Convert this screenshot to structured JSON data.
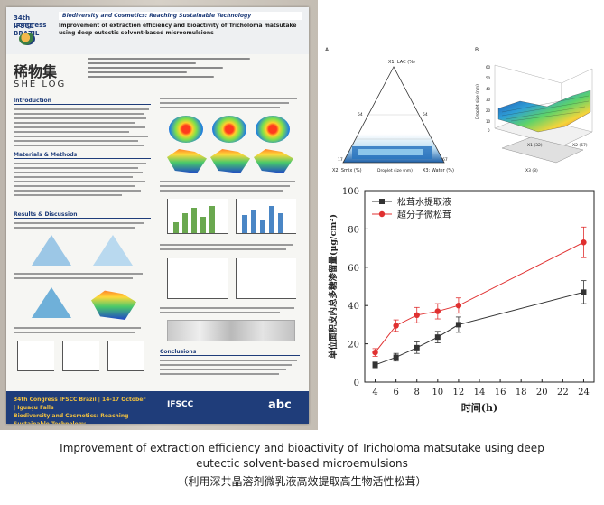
{
  "poster": {
    "conference_logo_line1": "34th Congress",
    "conference_logo_line2": "IFSCC BRAZIL",
    "banner": "Biodiversity and Cosmetics: Reaching Sustainable Technology",
    "title": "Improvement of extraction efficiency and bioactivity of Tricholoma matsutake using deep eutectic solvent-based microemulsions",
    "brand_cn": "稀物集",
    "brand_en": "SHE LOG",
    "sections": [
      "Introduction",
      "Materials & Methods",
      "Results & Discussion",
      "Conclusions"
    ],
    "footer_line1": "34th Congress IFSCC Brazil | 14-17 October | Iguaçu Falls",
    "footer_line2": "Biodiversity and Cosmetics: Reaching Sustainable Technology",
    "footer_org": "IFSCC",
    "footer_sponsor": "abc"
  },
  "figure_top": {
    "panel_a": "A",
    "panel_b": "B",
    "ternary_vertices": [
      "X1: LAC (%)",
      "X2: Smix (%)",
      "X3: Water (%)"
    ],
    "ternary_axis": "Droplet size (nm)",
    "ternary_ticks": [
      "54",
      "54",
      "17",
      "67"
    ],
    "surface_axes": [
      "X1 (32)",
      "X2 (67)",
      "X3 (8)"
    ],
    "surface_zlabel": "Droplet size (nm)",
    "surface_ticks": [
      "60",
      "50",
      "40",
      "30",
      "20",
      "10",
      "0"
    ]
  },
  "chart_data": {
    "type": "line",
    "ylabel": "单位面积皮内总多糖渗留量(μg/cm²)",
    "xlabel": "时间(h)",
    "ylim": [
      0,
      100
    ],
    "y_ticks": [
      0,
      20,
      40,
      60,
      80,
      100
    ],
    "x_ticks": [
      4,
      6,
      8,
      10,
      12,
      14,
      16,
      18,
      20,
      22,
      24
    ],
    "xlim": [
      3,
      25
    ],
    "legend_position": "top-left",
    "series": [
      {
        "name": "松茸水提取液",
        "color": "#333333",
        "marker": "square",
        "x": [
          4,
          6,
          8,
          10,
          12,
          24
        ],
        "y": [
          9,
          13,
          18,
          23.5,
          30,
          47
        ],
        "err": [
          1.5,
          2,
          3,
          3,
          4,
          6
        ]
      },
      {
        "name": "超分子微松茸",
        "color": "#e03030",
        "marker": "circle",
        "x": [
          4,
          6,
          8,
          10,
          12,
          24
        ],
        "y": [
          15.5,
          29.5,
          35,
          37,
          40,
          73
        ],
        "err": [
          2,
          3,
          4,
          4,
          4,
          8
        ]
      }
    ]
  },
  "caption": {
    "en_line1": "Improvement of extraction efficiency and bioactivity of Tricholoma matsutake using deep",
    "en_line2": "eutectic solvent-based microemulsions",
    "cn": "（利用深共晶溶剂微乳液高效提取高生物活性松茸）"
  }
}
